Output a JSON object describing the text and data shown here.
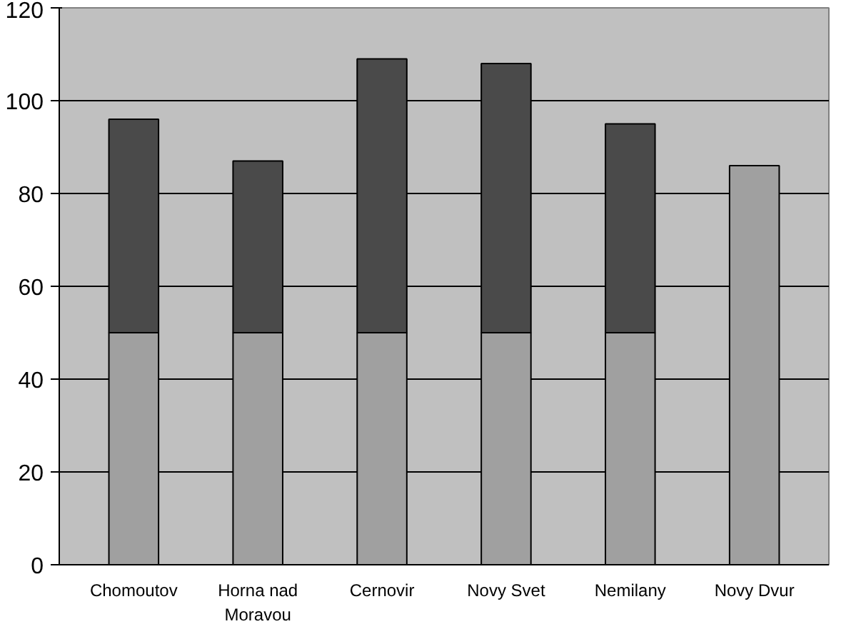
{
  "chart_data": {
    "type": "bar",
    "stacked": true,
    "categories": [
      "Chomoutov",
      "Horna nad\nMoravou",
      "Cernovir",
      "Novy Svet",
      "Nemilany",
      "Novy Dvur"
    ],
    "series": [
      {
        "color": "#a0a0a0",
        "values": [
          50,
          50,
          50,
          50,
          50,
          86
        ]
      },
      {
        "color": "#4a4a4a",
        "values": [
          46,
          37,
          59,
          58,
          45,
          null
        ]
      }
    ],
    "ylim": [
      0,
      120
    ],
    "yticks": [
      0,
      20,
      40,
      60,
      80,
      100,
      120
    ],
    "grid": "y"
  }
}
